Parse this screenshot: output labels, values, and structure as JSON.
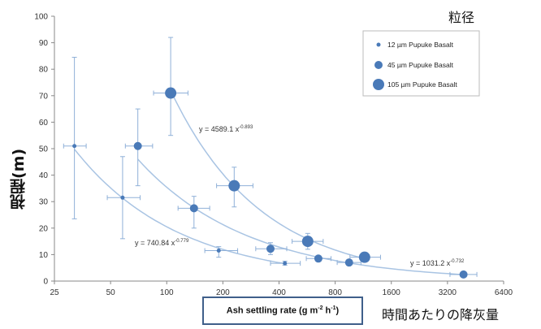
{
  "chart_data": {
    "type": "scatter",
    "x_scale": "log2",
    "x_ticks": [
      "25",
      "50",
      "100",
      "200",
      "400",
      "800",
      "1600",
      "3200",
      "6400"
    ],
    "y_ticks": [
      "0",
      "10",
      "20",
      "30",
      "40",
      "50",
      "60",
      "70",
      "80",
      "90",
      "100"
    ],
    "xlim": [
      25,
      6400
    ],
    "ylim": [
      0,
      100
    ],
    "xlabel_parts": [
      "Ash settling rate (g m",
      "-2",
      " h",
      "-1",
      ")"
    ],
    "ylabel": "視程(m)",
    "xlabel_jp": "時間あたりの降灰量",
    "legend_title": "粒径",
    "legend_placement": "top-right",
    "grid": false,
    "series": [
      {
        "name": "12 µm Pupuke Basalt",
        "marker_size": "small",
        "color": "#4a7ab8",
        "points": [
          {
            "x": 32,
            "y": 51,
            "xerr": [
              28,
              37
            ],
            "yerr": [
              23.5,
              84.5
            ]
          },
          {
            "x": 58,
            "y": 31.5,
            "xerr": [
              48,
              72
            ],
            "yerr": [
              16,
              47
            ]
          },
          {
            "x": 190,
            "y": 11.5,
            "xerr": [
              160,
              240
            ],
            "yerr": [
              9,
              13
            ]
          },
          {
            "x": 430,
            "y": 6.7,
            "xerr": [
              360,
              520
            ],
            "yerr": [
              6,
              7.5
            ]
          }
        ],
        "fit_equation_base": "y = 740.84 x",
        "fit_equation_exp": "-0.779",
        "fit": {
          "a": 740.84,
          "b": -0.779,
          "x_range": [
            32,
            430
          ]
        }
      },
      {
        "name": "45 µm Pupuke Basalt",
        "marker_size": "medium",
        "color": "#4a7ab8",
        "points": [
          {
            "x": 70,
            "y": 51,
            "xerr": [
              60,
              84
            ],
            "yerr": [
              36,
              65
            ]
          },
          {
            "x": 140,
            "y": 27.5,
            "xerr": [
              115,
              170
            ],
            "yerr": [
              20,
              32
            ]
          },
          {
            "x": 360,
            "y": 12.2,
            "xerr": [
              300,
              440
            ],
            "yerr": [
              10,
              14.5
            ]
          },
          {
            "x": 650,
            "y": 8.5,
            "xerr": [
              560,
              760
            ],
            "yerr": [
              7.5,
              9.5
            ]
          },
          {
            "x": 950,
            "y": 7,
            "xerr": [
              820,
              1100
            ],
            "yerr": [
              6,
              8
            ]
          },
          {
            "x": 3900,
            "y": 2.5,
            "xerr": [
              3300,
              4600
            ],
            "yerr": [
              2,
              3
            ]
          }
        ],
        "fit_equation_base": "y = 1031.2 x",
        "fit_equation_exp": "-0.732",
        "fit": {
          "a": 1031.2,
          "b": -0.732,
          "x_range": [
            70,
            3900
          ]
        }
      },
      {
        "name": "105 µm Pupuke Basalt",
        "marker_size": "large",
        "color": "#4a7ab8",
        "points": [
          {
            "x": 105,
            "y": 71,
            "xerr": [
              85,
              130
            ],
            "yerr": [
              55,
              92
            ]
          },
          {
            "x": 230,
            "y": 36,
            "xerr": [
              185,
              290
            ],
            "yerr": [
              28,
              43
            ]
          },
          {
            "x": 570,
            "y": 15,
            "xerr": [
              470,
              690
            ],
            "yerr": [
              12,
              18
            ]
          },
          {
            "x": 1150,
            "y": 9,
            "xerr": [
              960,
              1400
            ],
            "yerr": [
              7.5,
              10.5
            ]
          }
        ],
        "fit_equation_base": "y = 4589.1 x",
        "fit_equation_exp": "-0.893",
        "fit": {
          "a": 4589.1,
          "b": -0.893,
          "x_range": [
            105,
            1150
          ]
        }
      }
    ]
  }
}
